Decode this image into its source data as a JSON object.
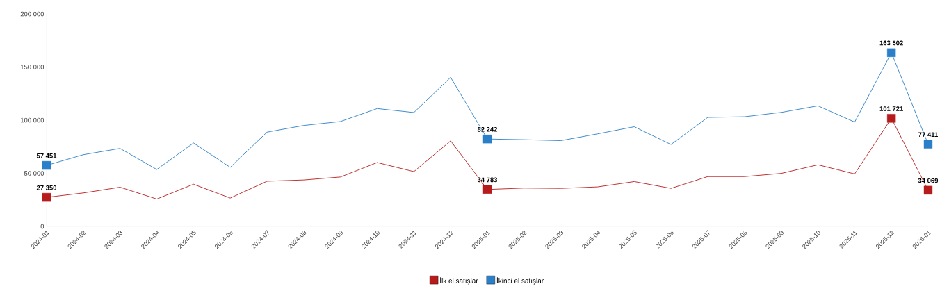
{
  "chart_data": {
    "type": "line",
    "categories": [
      "2024-01",
      "2024-02",
      "2024-03",
      "2024-04",
      "2024-05",
      "2024-06",
      "2024-07",
      "2024-08",
      "2024-09",
      "2024-10",
      "2024-11",
      "2024-12",
      "2025-01",
      "2025-02",
      "2025-03",
      "2025-04",
      "2025-05",
      "2025-06",
      "2025-07",
      "2025-08",
      "2025-09",
      "2025-10",
      "2025-11",
      "2025-12",
      "2026-01"
    ],
    "series": [
      {
        "name": "İlk el satışlar",
        "color": "#b71c1c",
        "values": [
          27350,
          31500,
          36900,
          25800,
          39700,
          26700,
          42500,
          43700,
          46500,
          60100,
          51600,
          80500,
          34783,
          36100,
          35800,
          37200,
          42200,
          35800,
          46900,
          46900,
          49900,
          58000,
          49400,
          101721,
          34069
        ],
        "value_labels": [
          "27 350",
          null,
          null,
          null,
          null,
          null,
          null,
          null,
          null,
          null,
          null,
          null,
          "34 783",
          null,
          null,
          null,
          null,
          null,
          null,
          null,
          null,
          null,
          null,
          "101 721",
          "34 069"
        ]
      },
      {
        "name": "İkinci el satışlar",
        "color": "#2a7fc8",
        "values": [
          57451,
          67500,
          73400,
          53600,
          78500,
          55600,
          88700,
          95000,
          98700,
          110900,
          107200,
          140300,
          82242,
          81600,
          80700,
          87100,
          93800,
          77100,
          102600,
          103200,
          107300,
          113500,
          98200,
          163502,
          77411
        ],
        "value_labels": [
          "57 451",
          null,
          null,
          null,
          null,
          null,
          null,
          null,
          null,
          null,
          null,
          null,
          "82 242",
          null,
          null,
          null,
          null,
          null,
          null,
          null,
          null,
          null,
          null,
          "163 502",
          "77 411"
        ]
      }
    ],
    "ylim": [
      0,
      200000
    ],
    "yticks": [
      0,
      {
        "value": 50000,
        "label": "50 000"
      },
      {
        "value": 100000,
        "label": "100 000"
      },
      {
        "value": 150000,
        "label": "150 000"
      },
      {
        "value": 200000,
        "label": "200 000"
      }
    ],
    "line_style": "solid",
    "grid": false,
    "legend": "bottom"
  }
}
